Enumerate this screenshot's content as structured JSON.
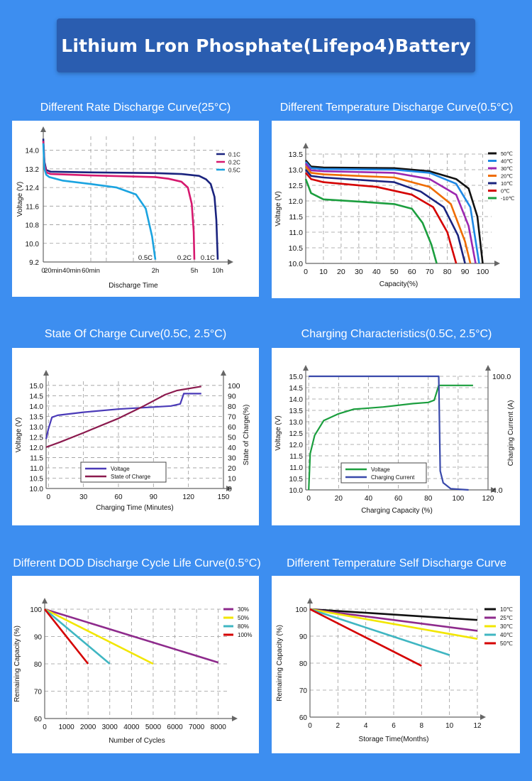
{
  "banner": {
    "title": "Lithium Lron Phosphate(Lifepo4)Battery"
  },
  "colors": {
    "background": "#3d8ef0",
    "banner": "#2a5db0"
  },
  "chart_data": [
    {
      "id": "c1",
      "type": "line",
      "title": "Different Rate Discharge Curve(25°C)",
      "xlabel": "Discharge Time",
      "ylabel": "Voltage (V)",
      "xtick_labels": [
        "0",
        "20min",
        "40min",
        "60min",
        "2h",
        "5h",
        "10h"
      ],
      "yticks": [
        9.2,
        10.0,
        10.8,
        11.6,
        12.4,
        13.2,
        14.0
      ],
      "ylim": [
        9.2,
        14.6
      ],
      "grid": true,
      "legend_position": "top-right",
      "series": [
        {
          "name": "0.1C",
          "color": "#1a237e",
          "end_label": "0.1C",
          "points": [
            [
              0,
              14.5
            ],
            [
              0.04,
              13.5
            ],
            [
              0.1,
              13.15
            ],
            [
              0.25,
              13.08
            ],
            [
              1,
              13.05
            ],
            [
              2,
              13.02
            ],
            [
              4,
              12.98
            ],
            [
              6,
              12.9
            ],
            [
              7.5,
              12.75
            ],
            [
              8.5,
              12.55
            ],
            [
              9.3,
              12.0
            ],
            [
              9.7,
              11.0
            ],
            [
              9.9,
              9.9
            ],
            [
              10,
              9.3
            ]
          ]
        },
        {
          "name": "0.2C",
          "color": "#d6186e",
          "end_label": "0.2C",
          "points": [
            [
              0,
              14.4
            ],
            [
              0.04,
              13.4
            ],
            [
              0.1,
              13.05
            ],
            [
              0.25,
              12.98
            ],
            [
              1,
              12.92
            ],
            [
              2,
              12.85
            ],
            [
              3,
              12.78
            ],
            [
              4,
              12.65
            ],
            [
              4.5,
              12.4
            ],
            [
              4.8,
              11.7
            ],
            [
              4.95,
              10.5
            ],
            [
              5,
              9.3
            ]
          ]
        },
        {
          "name": "0.5C",
          "color": "#1aa3e0",
          "end_label": "0.5C",
          "points": [
            [
              0,
              14.3
            ],
            [
              0.04,
              13.2
            ],
            [
              0.1,
              12.95
            ],
            [
              0.2,
              12.85
            ],
            [
              0.5,
              12.7
            ],
            [
              1,
              12.55
            ],
            [
              1.4,
              12.4
            ],
            [
              1.7,
              12.1
            ],
            [
              1.85,
              11.5
            ],
            [
              1.95,
              10.3
            ],
            [
              2,
              9.3
            ]
          ]
        }
      ]
    },
    {
      "id": "c2",
      "type": "line",
      "title": "Different Temperature Discharge Curve(0.5°C)",
      "xlabel": "Capacity(%)",
      "ylabel": "Voltage (V)",
      "xticks": [
        0,
        10,
        20,
        30,
        40,
        50,
        60,
        70,
        80,
        90,
        100
      ],
      "yticks": [
        10.0,
        10.5,
        11.0,
        11.5,
        12.0,
        12.5,
        13.0,
        13.5
      ],
      "xlim": [
        0,
        105
      ],
      "ylim": [
        10.0,
        13.5
      ],
      "grid": true,
      "legend_position": "top-right",
      "series": [
        {
          "name": "50℃",
          "color": "#111111",
          "points": [
            [
              0,
              13.3
            ],
            [
              3,
              13.1
            ],
            [
              10,
              13.07
            ],
            [
              50,
              13.05
            ],
            [
              70,
              12.95
            ],
            [
              85,
              12.7
            ],
            [
              92,
              12.4
            ],
            [
              97,
              11.5
            ],
            [
              100,
              10.0
            ]
          ]
        },
        {
          "name": "40℃",
          "color": "#1e88e5",
          "points": [
            [
              0,
              13.25
            ],
            [
              3,
              13.05
            ],
            [
              10,
              13.02
            ],
            [
              50,
              13.0
            ],
            [
              70,
              12.9
            ],
            [
              85,
              12.55
            ],
            [
              93,
              11.8
            ],
            [
              98,
              10.0
            ]
          ]
        },
        {
          "name": "30℃",
          "color": "#9c27b0",
          "points": [
            [
              0,
              13.2
            ],
            [
              3,
              12.98
            ],
            [
              10,
              12.95
            ],
            [
              50,
              12.9
            ],
            [
              70,
              12.7
            ],
            [
              85,
              12.2
            ],
            [
              92,
              11.2
            ],
            [
              96,
              10.0
            ]
          ]
        },
        {
          "name": "20℃",
          "color": "#ef6c00",
          "points": [
            [
              0,
              13.1
            ],
            [
              3,
              12.9
            ],
            [
              10,
              12.85
            ],
            [
              50,
              12.75
            ],
            [
              70,
              12.45
            ],
            [
              82,
              11.9
            ],
            [
              90,
              10.7
            ],
            [
              93,
              10.0
            ]
          ]
        },
        {
          "name": "10℃",
          "color": "#1a237e",
          "points": [
            [
              0,
              13.0
            ],
            [
              3,
              12.8
            ],
            [
              10,
              12.75
            ],
            [
              50,
              12.6
            ],
            [
              65,
              12.3
            ],
            [
              78,
              11.8
            ],
            [
              86,
              10.9
            ],
            [
              90,
              10.0
            ]
          ]
        },
        {
          "name": "0℃",
          "color": "#d50000",
          "points": [
            [
              0,
              12.9
            ],
            [
              3,
              12.7
            ],
            [
              10,
              12.6
            ],
            [
              40,
              12.45
            ],
            [
              60,
              12.2
            ],
            [
              72,
              11.8
            ],
            [
              80,
              11.0
            ],
            [
              85,
              10.0
            ]
          ]
        },
        {
          "name": "-10℃",
          "color": "#1b9e3e",
          "points": [
            [
              0,
              12.7
            ],
            [
              3,
              12.25
            ],
            [
              10,
              12.05
            ],
            [
              30,
              11.98
            ],
            [
              50,
              11.9
            ],
            [
              60,
              11.75
            ],
            [
              66,
              11.3
            ],
            [
              71,
              10.6
            ],
            [
              74,
              10.0
            ]
          ]
        }
      ]
    },
    {
      "id": "c3",
      "type": "line",
      "title": "State Of Charge Curve(0.5C, 2.5°C)",
      "xlabel": "Charging Time (Minutes)",
      "ylabel": "Voltage (V)",
      "ylabel_right": "State of Charge(%)",
      "xticks": [
        0,
        30,
        60,
        90,
        120,
        150
      ],
      "yticks": [
        10.0,
        10.5,
        11.0,
        11.5,
        12.0,
        12.5,
        13.0,
        13.5,
        14.0,
        14.5,
        15.0
      ],
      "yticks_right": [
        0,
        10,
        20,
        30,
        40,
        50,
        60,
        70,
        80,
        90,
        100
      ],
      "xlim": [
        -2,
        150
      ],
      "ylim": [
        10.0,
        15.2
      ],
      "grid": true,
      "legend_position": "bottom-left",
      "series": [
        {
          "name": "Voltage",
          "color": "#4a3ab8",
          "axis": "left",
          "points": [
            [
              -2,
              12.4
            ],
            [
              0,
              12.9
            ],
            [
              3,
              13.45
            ],
            [
              8,
              13.55
            ],
            [
              30,
              13.7
            ],
            [
              60,
              13.85
            ],
            [
              90,
              13.95
            ],
            [
              105,
              14.0
            ],
            [
              113,
              14.1
            ],
            [
              116,
              14.6
            ],
            [
              131,
              14.6
            ]
          ]
        },
        {
          "name": "State of Charge",
          "color": "#8b1a4e",
          "axis": "right",
          "points": [
            [
              -2,
              40
            ],
            [
              10,
              45
            ],
            [
              30,
              54
            ],
            [
              60,
              68
            ],
            [
              80,
              79
            ],
            [
              100,
              91
            ],
            [
              110,
              95
            ],
            [
              131,
              99
            ]
          ]
        }
      ]
    },
    {
      "id": "c4",
      "type": "line",
      "title": "Charging Characteristics(0.5C, 2.5°C)",
      "xlabel": "Charging Capacity (%)",
      "ylabel": "Voltage (V)",
      "ylabel_right": "Charging Current (A)",
      "xticks": [
        0,
        20,
        40,
        60,
        80,
        100,
        120
      ],
      "yticks": [
        10.0,
        10.5,
        11.0,
        11.5,
        12.0,
        12.5,
        13.0,
        13.5,
        14.0,
        14.5,
        15.0
      ],
      "yticks_right": [
        100.0,
        4.0
      ],
      "xlim": [
        -2,
        120
      ],
      "ylim": [
        10.0,
        15.0
      ],
      "grid": true,
      "legend_position": "bottom-left",
      "series": [
        {
          "name": "Voltage",
          "color": "#1b9e3e",
          "axis": "left",
          "points": [
            [
              0,
              10.0
            ],
            [
              1,
              11.6
            ],
            [
              4,
              12.4
            ],
            [
              10,
              13.05
            ],
            [
              20,
              13.35
            ],
            [
              30,
              13.55
            ],
            [
              50,
              13.65
            ],
            [
              70,
              13.8
            ],
            [
              80,
              13.85
            ],
            [
              84,
              13.95
            ],
            [
              87,
              14.6
            ],
            [
              110,
              14.6
            ]
          ]
        },
        {
          "name": "Charging Current",
          "color": "#3949ab",
          "axis": "right",
          "points": [
            [
              0,
              100.0
            ],
            [
              87,
              100.0
            ],
            [
              88,
              20
            ],
            [
              90,
              10
            ],
            [
              95,
              5
            ],
            [
              107,
              4.0
            ]
          ]
        }
      ]
    },
    {
      "id": "c5",
      "type": "line",
      "title": "Different DOD Discharge Cycle Life Curve(0.5°C)",
      "xlabel": "Number of Cycles",
      "ylabel": "Remaining Capacity (%)",
      "xticks": [
        0,
        1000,
        2000,
        3000,
        4000,
        5000,
        6000,
        7000,
        8000
      ],
      "yticks": [
        60,
        70,
        80,
        90,
        100
      ],
      "xlim": [
        0,
        8500
      ],
      "ylim": [
        60,
        100
      ],
      "grid": true,
      "legend_position": "top-right",
      "series": [
        {
          "name": "30%",
          "color": "#8e2a8c",
          "points": [
            [
              0,
              100
            ],
            [
              8000,
              80.5
            ]
          ]
        },
        {
          "name": "50%",
          "color": "#f2e600",
          "points": [
            [
              0,
              100
            ],
            [
              5000,
              80
            ]
          ]
        },
        {
          "name": "80%",
          "color": "#3fb6c2",
          "points": [
            [
              0,
              100
            ],
            [
              3000,
              80
            ]
          ]
        },
        {
          "name": "100%",
          "color": "#d50000",
          "points": [
            [
              0,
              100
            ],
            [
              2000,
              80
            ]
          ]
        }
      ]
    },
    {
      "id": "c6",
      "type": "line",
      "title": "Different Temperature Self Discharge Curve",
      "xlabel": "Storage Time(Months)",
      "ylabel": "Remaining Capacity (%)",
      "xticks": [
        0,
        2,
        4,
        6,
        8,
        10,
        12
      ],
      "yticks": [
        60,
        70,
        80,
        90,
        100
      ],
      "xlim": [
        0,
        12
      ],
      "ylim": [
        60,
        100
      ],
      "grid": true,
      "legend_position": "top-right",
      "series": [
        {
          "name": "10℃",
          "color": "#111111",
          "points": [
            [
              0,
              100
            ],
            [
              12,
              96
            ]
          ]
        },
        {
          "name": "25℃",
          "color": "#8e2a8c",
          "points": [
            [
              0,
              100
            ],
            [
              12,
              92
            ]
          ]
        },
        {
          "name": "30℃",
          "color": "#f2e600",
          "points": [
            [
              0,
              100
            ],
            [
              12,
              89
            ]
          ]
        },
        {
          "name": "40℃",
          "color": "#3fb6c2",
          "points": [
            [
              0,
              100
            ],
            [
              10,
              83
            ]
          ]
        },
        {
          "name": "50℃",
          "color": "#d50000",
          "points": [
            [
              0,
              100
            ],
            [
              8,
              79
            ]
          ]
        }
      ]
    }
  ]
}
